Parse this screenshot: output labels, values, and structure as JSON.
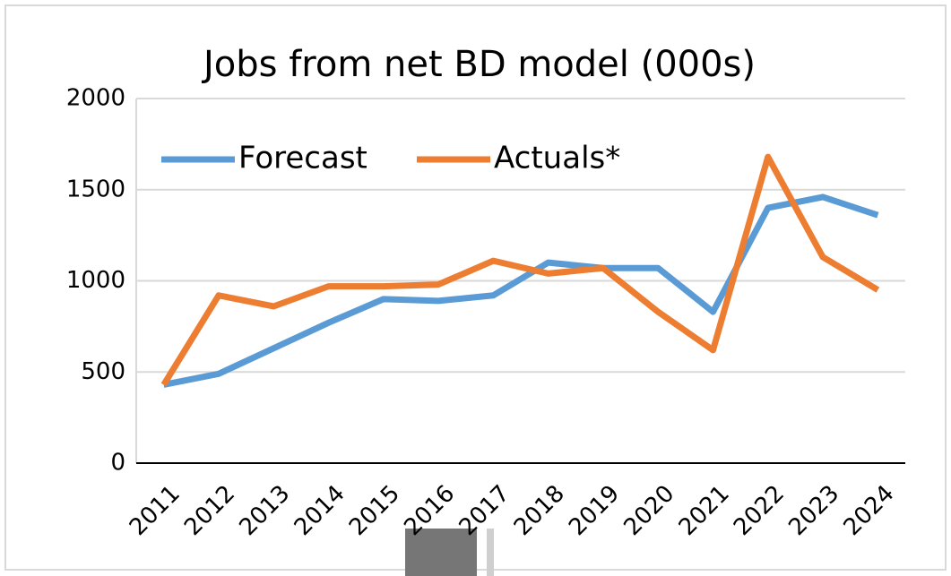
{
  "chart_data": {
    "type": "line",
    "title": "Jobs from net BD model (000s)",
    "categories": [
      "2011",
      "2012",
      "2013",
      "2014",
      "2015",
      "2016",
      "2017",
      "2018",
      "2019",
      "2020",
      "2021",
      "2022",
      "2023",
      "2024"
    ],
    "series": [
      {
        "name": "Forecast",
        "color": "#5b9bd5",
        "values": [
          430,
          490,
          630,
          770,
          900,
          890,
          920,
          1100,
          1070,
          1070,
          830,
          1400,
          1460,
          1360
        ]
      },
      {
        "name": "Actuals*",
        "color": "#ed7d31",
        "values": [
          430,
          920,
          860,
          970,
          970,
          980,
          1110,
          1040,
          1070,
          830,
          620,
          1680,
          1130,
          950
        ]
      }
    ],
    "ylim": [
      0,
      2000
    ],
    "yticks": [
      0,
      500,
      1000,
      1500,
      2000
    ],
    "grid": true,
    "legend": "top-left"
  }
}
